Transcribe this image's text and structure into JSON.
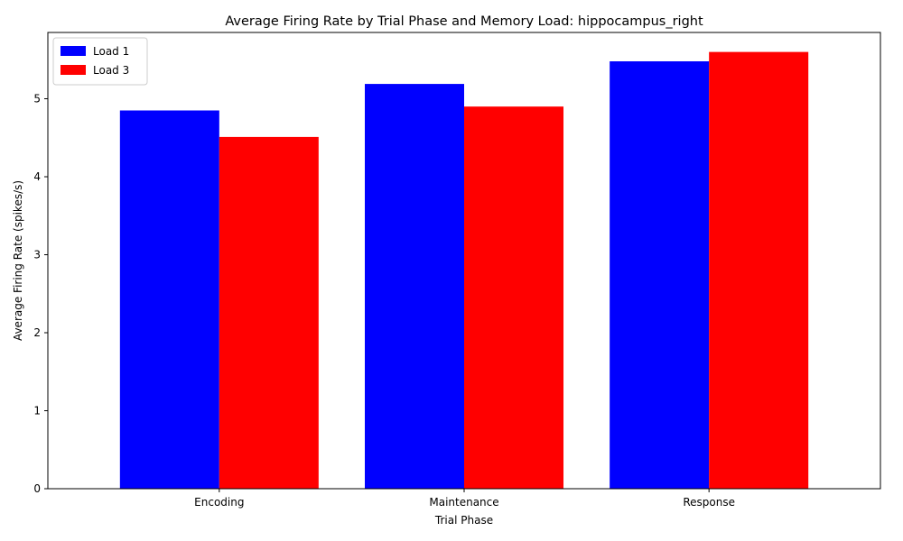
{
  "chart_data": {
    "type": "bar",
    "title": "Average Firing Rate by Trial Phase and Memory Load: hippocampus_right",
    "xlabel": "Trial Phase",
    "ylabel": "Average Firing Rate (spikes/s)",
    "categories": [
      "Encoding",
      "Maintenance",
      "Response"
    ],
    "series": [
      {
        "name": "Load 1",
        "color": "#0000ff",
        "values": [
          4.85,
          5.19,
          5.48
        ]
      },
      {
        "name": "Load 3",
        "color": "#ff0000",
        "values": [
          4.51,
          4.9,
          5.6
        ]
      }
    ],
    "ylim": [
      0,
      5.85
    ],
    "yticks": [
      0,
      1,
      2,
      3,
      4,
      5
    ],
    "grid": false,
    "legend_position": "top-left"
  }
}
